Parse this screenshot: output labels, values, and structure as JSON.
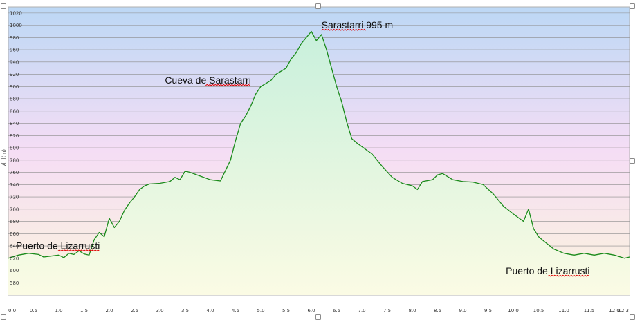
{
  "chart_data": {
    "type": "area",
    "title": "",
    "xlabel": "",
    "ylabel": "Alt (m)",
    "xlim": [
      0,
      12.3
    ],
    "ylim": [
      560,
      1030
    ],
    "grid": true,
    "x_ticks": [
      "0.0",
      "0.5",
      "1.0",
      "1.5",
      "2.0",
      "2.5",
      "3.0",
      "3.5",
      "4.0",
      "4.5",
      "5.0",
      "5.5",
      "6.0",
      "6.5",
      "7.0",
      "7.5",
      "8.0",
      "8.5",
      "9.0",
      "9.5",
      "10.0",
      "10.5",
      "11.0",
      "11.5",
      "12.0",
      "12.3"
    ],
    "y_ticks": [
      "580",
      "600",
      "620",
      "640",
      "660",
      "680",
      "700",
      "720",
      "740",
      "760",
      "780",
      "800",
      "820",
      "840",
      "860",
      "880",
      "900",
      "920",
      "940",
      "960",
      "980",
      "1000",
      "1020"
    ],
    "series": [
      {
        "x": [
          0,
          0.2,
          0.4,
          0.6,
          0.7,
          0.9,
          1.0,
          1.1,
          1.2,
          1.3,
          1.4,
          1.5,
          1.6,
          1.7,
          1.8,
          1.9,
          2.0,
          2.1,
          2.2,
          2.3,
          2.4,
          2.5,
          2.6,
          2.7,
          2.8,
          3.0,
          3.2,
          3.3,
          3.4,
          3.5,
          3.6,
          3.8,
          4.0,
          4.2,
          4.4,
          4.5,
          4.6,
          4.7,
          4.8,
          4.9,
          5.0,
          5.1,
          5.2,
          5.3,
          5.4,
          5.5,
          5.6,
          5.7,
          5.8,
          5.9,
          6.0,
          6.1,
          6.2,
          6.3,
          6.4,
          6.5,
          6.6,
          6.7,
          6.8,
          6.9,
          7.0,
          7.2,
          7.4,
          7.6,
          7.8,
          8.0,
          8.1,
          8.2,
          8.4,
          8.5,
          8.6,
          8.8,
          9.0,
          9.2,
          9.4,
          9.6,
          9.8,
          10.0,
          10.2,
          10.3,
          10.4,
          10.5,
          10.6,
          10.8,
          11.0,
          11.2,
          11.4,
          11.6,
          11.8,
          12.0,
          12.2,
          12.3
        ],
        "y": [
          620,
          625,
          628,
          626,
          622,
          624,
          625,
          621,
          628,
          626,
          632,
          627,
          625,
          650,
          662,
          655,
          685,
          670,
          680,
          698,
          710,
          720,
          732,
          738,
          741,
          742,
          745,
          752,
          748,
          762,
          760,
          754,
          748,
          746,
          780,
          812,
          840,
          852,
          868,
          888,
          900,
          905,
          910,
          920,
          925,
          930,
          945,
          955,
          970,
          980,
          990,
          975,
          985,
          960,
          930,
          900,
          875,
          842,
          815,
          808,
          802,
          790,
          770,
          752,
          742,
          738,
          732,
          745,
          748,
          756,
          758,
          748,
          745,
          744,
          740,
          725,
          705,
          692,
          680,
          700,
          668,
          655,
          648,
          635,
          628,
          625,
          628,
          625,
          628,
          625,
          620,
          622
        ]
      }
    ],
    "annotations": [
      {
        "text": "Sarastarri 995 m",
        "x": 6.2,
        "y": 995
      },
      {
        "text": "Cueva de Sarastarri",
        "x": 3.1,
        "y": 905
      },
      {
        "text": "Puerto de Lizarrusti",
        "x": 0.15,
        "y": 635
      },
      {
        "text": "Puerto de Lizarrusti",
        "x": 9.85,
        "y": 594
      }
    ],
    "colors": {
      "line": "#1a8a1a",
      "fill_top": "#c8f0dc",
      "fill_bottom": "#fbfbe4",
      "background_top": "#bcd8f5",
      "background_mid": "#f5ddf5",
      "background_bottom": "#fbf4dc",
      "grid": "#8c8c8c"
    }
  }
}
